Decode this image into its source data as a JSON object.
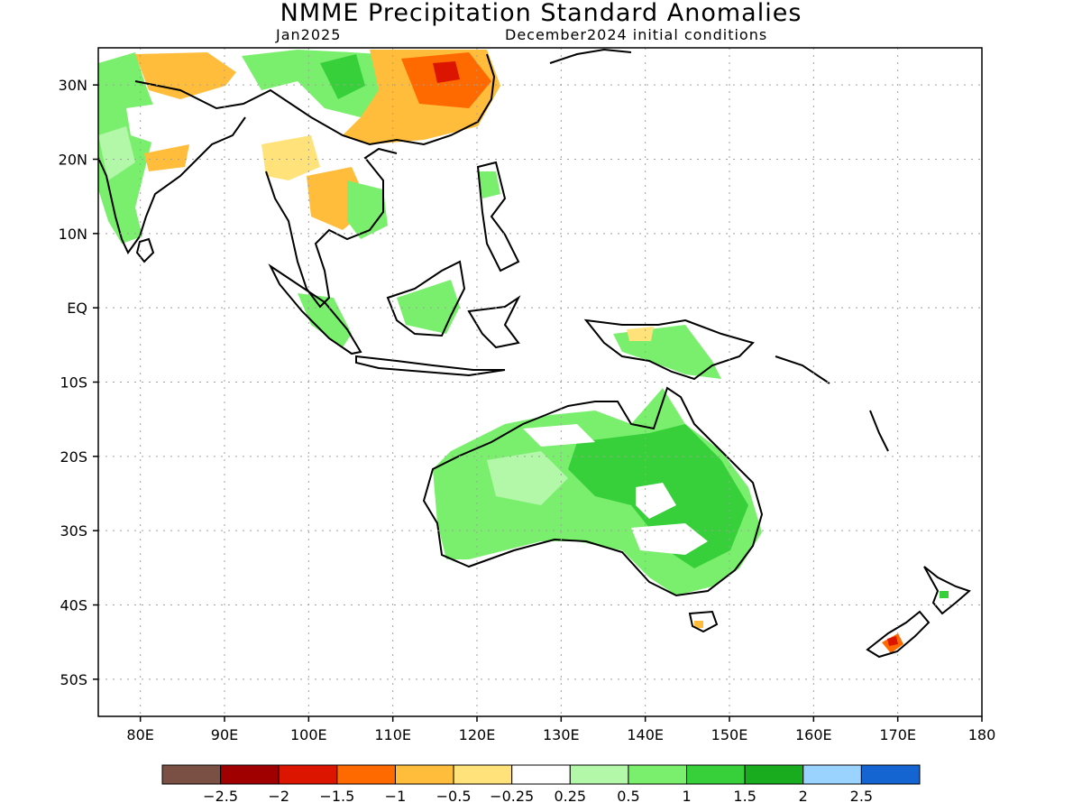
{
  "header": {
    "title": "NMME Precipitation Standard Anomalies",
    "target_month": "Jan2025",
    "initial_conditions": "December2024 initial conditions"
  },
  "map": {
    "lon_range": [
      75,
      180
    ],
    "lat_range": [
      -55,
      35
    ],
    "lat_ticks": [
      {
        "value": 30,
        "label": "30N"
      },
      {
        "value": 20,
        "label": "20N"
      },
      {
        "value": 10,
        "label": "10N"
      },
      {
        "value": 0,
        "label": "EQ"
      },
      {
        "value": -10,
        "label": "10S"
      },
      {
        "value": -20,
        "label": "20S"
      },
      {
        "value": -30,
        "label": "30S"
      },
      {
        "value": -40,
        "label": "40S"
      },
      {
        "value": -50,
        "label": "50S"
      }
    ],
    "lon_ticks": [
      {
        "value": 80,
        "label": "80E"
      },
      {
        "value": 90,
        "label": "90E"
      },
      {
        "value": 100,
        "label": "100E"
      },
      {
        "value": 110,
        "label": "110E"
      },
      {
        "value": 120,
        "label": "120E"
      },
      {
        "value": 130,
        "label": "130E"
      },
      {
        "value": 140,
        "label": "140E"
      },
      {
        "value": 150,
        "label": "150E"
      },
      {
        "value": 160,
        "label": "160E"
      },
      {
        "value": 170,
        "label": "170E"
      },
      {
        "value": 180,
        "label": "180"
      }
    ],
    "grid": "dotted"
  },
  "colorbar": {
    "colors": [
      "#7a4f44",
      "#a10000",
      "#dc1500",
      "#ff6a00",
      "#ffbd3b",
      "#ffe27a",
      "#ffffff",
      "#b3f7a8",
      "#7aef6d",
      "#38d03a",
      "#1aac1f",
      "#9bd3ff",
      "#1464d2"
    ],
    "labels": [
      "-2.5",
      "-2",
      "-1.5",
      "-1",
      "-0.5",
      "-0.25",
      "0.25",
      "0.5",
      "1",
      "1.5",
      "2",
      "2.5"
    ]
  }
}
